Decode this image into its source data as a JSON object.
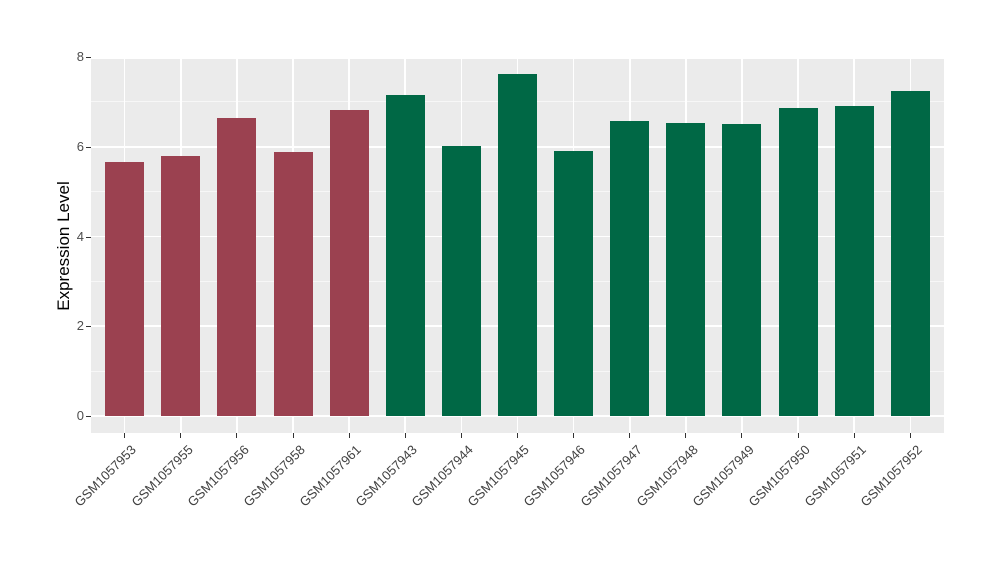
{
  "chart_data": {
    "type": "bar",
    "title": "",
    "xlabel": "",
    "ylabel": "Expression Level",
    "ylim": [
      0,
      8
    ],
    "yticks_major": [
      0,
      2,
      4,
      6,
      8
    ],
    "yticks_minor": [
      1,
      3,
      5,
      7
    ],
    "grid": "on",
    "legend": "none",
    "x_label_rotation_deg": 45,
    "categories": [
      "GSM1057953",
      "GSM1057955",
      "GSM1057956",
      "GSM1057958",
      "GSM1057961",
      "GSM1057943",
      "GSM1057944",
      "GSM1057945",
      "GSM1057946",
      "GSM1057947",
      "GSM1057948",
      "GSM1057949",
      "GSM1057950",
      "GSM1057951",
      "GSM1057952"
    ],
    "values": [
      5.66,
      5.8,
      6.63,
      5.89,
      6.83,
      7.15,
      6.01,
      7.62,
      5.9,
      6.57,
      6.52,
      6.5,
      6.87,
      6.91,
      7.25
    ],
    "bar_groups": [
      "maroon",
      "maroon",
      "maroon",
      "maroon",
      "maroon",
      "green",
      "green",
      "green",
      "green",
      "green",
      "green",
      "green",
      "green",
      "green",
      "green"
    ],
    "palette": {
      "maroon": "#9B4150",
      "green": "#006845"
    },
    "colors": {
      "panel_background": "#EBEBEB",
      "grid_major": "#FFFFFF",
      "grid_minor": "#F7F7F7",
      "tick_mark": "#333333",
      "tick_text": "#4D4D4D",
      "axis_title_text": "#000000",
      "figure_background": "#FFFFFF"
    }
  }
}
